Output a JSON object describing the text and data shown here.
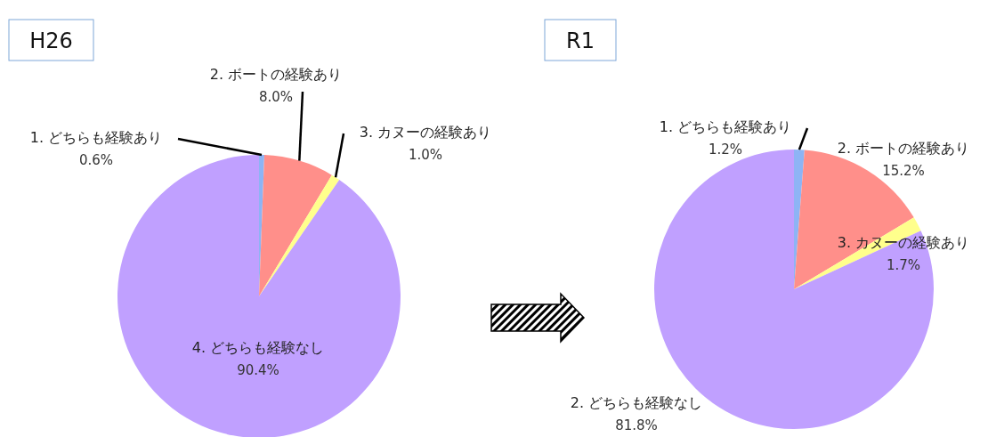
{
  "chart_data": [
    {
      "type": "pie",
      "title": "H26",
      "categories": [
        "1. どちらも経験あり",
        "2. ボートの経験あり",
        "3. カヌーの経験あり",
        "4. どちらも経験なし"
      ],
      "values": [
        0.6,
        8.0,
        1.0,
        90.4
      ],
      "colors": [
        "#8db4f5",
        "#ff8f8a",
        "#ffff8c",
        "#c0a0ff"
      ],
      "value_labels": [
        "0.6%",
        "8.0%",
        "1.0%",
        "90.4%"
      ]
    },
    {
      "type": "pie",
      "title": "R1",
      "categories": [
        "1. どちらも経験あり",
        "2. ボートの経験あり",
        "3. カヌーの経験あり",
        "2. どちらも経験なし"
      ],
      "values": [
        1.2,
        15.2,
        1.7,
        81.8
      ],
      "colors": [
        "#8db4f5",
        "#ff8f8a",
        "#ffff8c",
        "#c0a0ff"
      ],
      "value_labels": [
        "1.2%",
        "15.2%",
        "1.7%",
        "81.8%"
      ]
    }
  ]
}
